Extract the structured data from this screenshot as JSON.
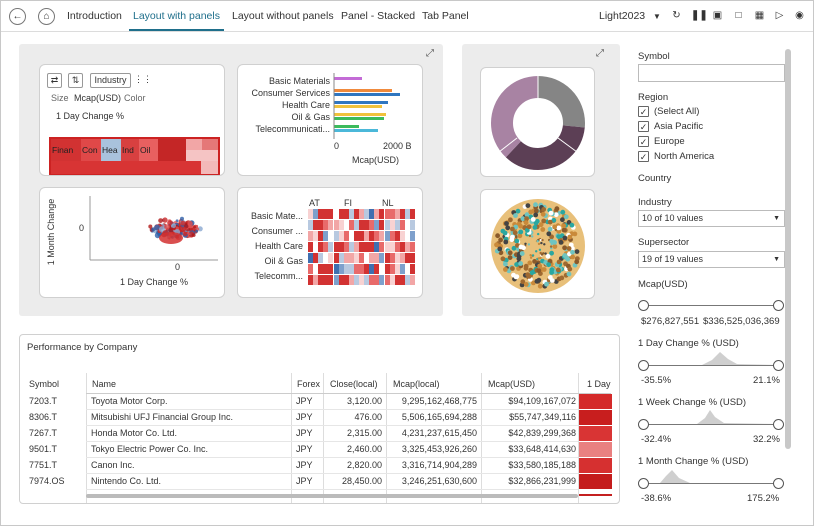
{
  "nav": {
    "tabs": [
      {
        "label": "Introduction"
      },
      {
        "label": "Layout with panels"
      },
      {
        "label": "Layout without panels"
      },
      {
        "label": "Panel - Stacked"
      },
      {
        "label": "Tab Panel"
      }
    ],
    "theme": "Light2023"
  },
  "treemap_card": {
    "field_label": "Industry",
    "size_label": "Size",
    "size_value": "Mcap(USD)",
    "color_label": "Color",
    "color_value": "1 Day Change %",
    "cells": [
      {
        "label": "Finan",
        "color": "#d23232"
      },
      {
        "label": "Con",
        "color": "#e04848"
      },
      {
        "label": "Hea",
        "color": "#a9c2dc"
      },
      {
        "label": "Ind",
        "color": "#d84040"
      },
      {
        "label": "Oil",
        "color": "#e86060"
      }
    ]
  },
  "bar_card": {
    "categories": [
      "Basic Materials",
      "Consumer Services",
      "Health Care",
      "Oil & Gas",
      "Telecommunicati..."
    ],
    "tick_0": "0",
    "tick_1": "2000 B",
    "xlabel": "Mcap(USD)"
  },
  "scatter_card": {
    "ylabel": "1 Month Change",
    "xlabel": "1 Day Change %",
    "ytick": "0",
    "xtick": "0"
  },
  "heatmap_card": {
    "columns": [
      "AT",
      "FI",
      "NL"
    ],
    "rows": [
      "Basic Mate...",
      "Consumer ...",
      "Health Care",
      "Oil & Gas",
      "Telecomm..."
    ]
  },
  "performance": {
    "title": "Performance by Company",
    "headers": {
      "symbol": "Symbol",
      "name": "Name",
      "forex": "Forex",
      "close": "Close(local)",
      "mcap_local": "Mcap(local)",
      "mcap_usd": "Mcap(USD)",
      "day": "1 Day"
    },
    "rows": [
      {
        "symbol": "7203.T",
        "name": "Toyota Motor Corp.",
        "forex": "JPY",
        "close": "3,120.00",
        "mcap_local": "9,295,162,468,775",
        "mcap_usd": "$94,109,167,072",
        "color": "#d42a2a"
      },
      {
        "symbol": "8306.T",
        "name": "Mitsubishi UFJ Financial Group Inc.",
        "forex": "JPY",
        "close": "476.00",
        "mcap_local": "5,506,165,694,288",
        "mcap_usd": "$55,747,349,116",
        "color": "#c81e1e"
      },
      {
        "symbol": "7267.T",
        "name": "Honda Motor Co. Ltd.",
        "forex": "JPY",
        "close": "2,315.00",
        "mcap_local": "4,231,237,615,450",
        "mcap_usd": "$42,839,299,368",
        "color": "#d93434"
      },
      {
        "symbol": "9501.T",
        "name": "Tokyo Electric Power Co. Inc.",
        "forex": "JPY",
        "close": "2,460.00",
        "mcap_local": "3,325,453,926,260",
        "mcap_usd": "$33,648,414,630",
        "color": "#e98080"
      },
      {
        "symbol": "7751.T",
        "name": "Canon Inc.",
        "forex": "JPY",
        "close": "2,820.00",
        "mcap_local": "3,316,714,904,289",
        "mcap_usd": "$33,580,185,188",
        "color": "#d63030"
      },
      {
        "symbol": "7974.OS",
        "name": "Nintendo Co. Ltd.",
        "forex": "JPY",
        "close": "28,450.00",
        "mcap_local": "3,246,251,630,600",
        "mcap_usd": "$32,866,231,999",
        "color": "#c41c1c"
      }
    ]
  },
  "filters": {
    "symbol_label": "Symbol",
    "region_label": "Region",
    "region_options": [
      {
        "label": "(Select All)",
        "checked": true
      },
      {
        "label": "Asia Pacific",
        "checked": true
      },
      {
        "label": "Europe",
        "checked": true
      },
      {
        "label": "North America",
        "checked": true
      }
    ],
    "country_label": "Country",
    "industry_label": "Industry",
    "industry_value": "10 of 10 values",
    "supersector_label": "Supersector",
    "supersector_value": "19 of 19 values",
    "mcap_label": "Mcap(USD)",
    "mcap_min": "$276,827,551",
    "mcap_max": "$336,525,036,369",
    "day_label": "1 Day Change % (USD)",
    "day_min": "-35.5%",
    "day_max": "21.1%",
    "week_label": "1 Week Change % (USD)",
    "week_min": "-32.4%",
    "week_max": "32.2%",
    "month_label": "1 Month Change % (USD)",
    "month_min": "-38.6%",
    "month_max": "175.2%"
  }
}
